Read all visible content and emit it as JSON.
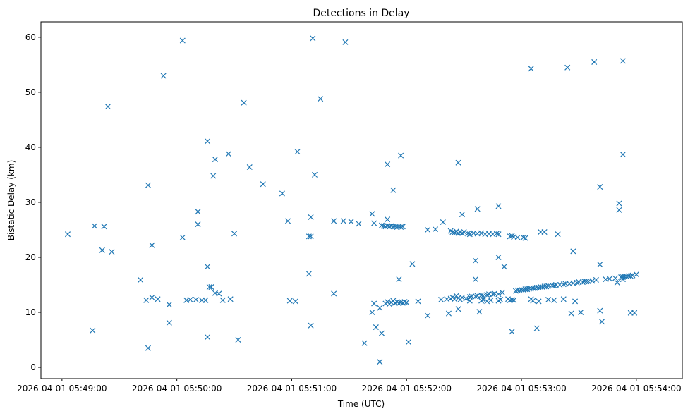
{
  "chart_data": {
    "type": "scatter",
    "title": "Detections in Delay",
    "xlabel": "Time (UTC)",
    "ylabel": "Bistatic Delay (km)",
    "x_units": "seconds after 2026-04-01 05:49:00",
    "xlim": [
      -11,
      324
    ],
    "ylim": [
      -2.05,
      62.8
    ],
    "x_ticks": [
      {
        "value": 0,
        "label": "2026-04-01 05:49:00"
      },
      {
        "value": 60,
        "label": "2026-04-01 05:50:00"
      },
      {
        "value": 120,
        "label": "2026-04-01 05:51:00"
      },
      {
        "value": 180,
        "label": "2026-04-01 05:52:00"
      },
      {
        "value": 240,
        "label": "2026-04-01 05:53:00"
      },
      {
        "value": 300,
        "label": "2026-04-01 05:54:00"
      }
    ],
    "y_ticks": [
      {
        "value": 0,
        "label": "0"
      },
      {
        "value": 10,
        "label": "10"
      },
      {
        "value": 20,
        "label": "20"
      },
      {
        "value": 30,
        "label": "30"
      },
      {
        "value": 40,
        "label": "40"
      },
      {
        "value": 50,
        "label": "50"
      },
      {
        "value": 60,
        "label": "60"
      }
    ],
    "grid": false,
    "marker": "x",
    "color": "#1f77b4",
    "series": [
      {
        "name": "detections",
        "points": [
          [
            3,
            24.2
          ],
          [
            16,
            6.7
          ],
          [
            17,
            25.7
          ],
          [
            21,
            21.3
          ],
          [
            22,
            25.6
          ],
          [
            24,
            47.4
          ],
          [
            26,
            21.0
          ],
          [
            41,
            15.9
          ],
          [
            44,
            12.2
          ],
          [
            45,
            33.1
          ],
          [
            45,
            3.5
          ],
          [
            47,
            12.7
          ],
          [
            47,
            22.2
          ],
          [
            50,
            12.4
          ],
          [
            53,
            53.0
          ],
          [
            56,
            11.4
          ],
          [
            56,
            8.1
          ],
          [
            63,
            59.4
          ],
          [
            63,
            23.6
          ],
          [
            65,
            12.2
          ],
          [
            67,
            12.3
          ],
          [
            70,
            12.3
          ],
          [
            71,
            28.3
          ],
          [
            71,
            26.0
          ],
          [
            73,
            12.2
          ],
          [
            75,
            12.2
          ],
          [
            76,
            18.3
          ],
          [
            76,
            5.5
          ],
          [
            76,
            41.1
          ],
          [
            77,
            14.6
          ],
          [
            78,
            14.6
          ],
          [
            79,
            34.8
          ],
          [
            80,
            13.5
          ],
          [
            80,
            37.8
          ],
          [
            82,
            13.4
          ],
          [
            84,
            12.2
          ],
          [
            87,
            38.8
          ],
          [
            88,
            12.4
          ],
          [
            90,
            24.3
          ],
          [
            92,
            5.0
          ],
          [
            95,
            48.1
          ],
          [
            98,
            36.4
          ],
          [
            105,
            33.3
          ],
          [
            115,
            31.6
          ],
          [
            118,
            26.6
          ],
          [
            119,
            12.1
          ],
          [
            122,
            12.0
          ],
          [
            123,
            39.2
          ],
          [
            129,
            17.0
          ],
          [
            129,
            23.8
          ],
          [
            130,
            27.3
          ],
          [
            130,
            23.8
          ],
          [
            130,
            7.6
          ],
          [
            131,
            59.8
          ],
          [
            132,
            35.0
          ],
          [
            135,
            48.8
          ],
          [
            142,
            13.4
          ],
          [
            142,
            26.6
          ],
          [
            147,
            26.6
          ],
          [
            148,
            59.1
          ],
          [
            151,
            26.5
          ],
          [
            155,
            26.1
          ],
          [
            158,
            4.4
          ],
          [
            162,
            27.9
          ],
          [
            162,
            10.0
          ],
          [
            163,
            26.2
          ],
          [
            163,
            11.6
          ],
          [
            164,
            7.3
          ],
          [
            166,
            1.0
          ],
          [
            166,
            10.8
          ],
          [
            167,
            6.2
          ],
          [
            170,
            36.9
          ],
          [
            170,
            26.9
          ],
          [
            173,
            32.2
          ],
          [
            176,
            16.0
          ],
          [
            177,
            38.5
          ],
          [
            181,
            4.6
          ],
          [
            183,
            18.8
          ],
          [
            186,
            12.0
          ],
          [
            191,
            25.0
          ],
          [
            191,
            9.4
          ],
          [
            195,
            25.1
          ],
          [
            199,
            26.4
          ],
          [
            202,
            9.8
          ],
          [
            207,
            37.2
          ],
          [
            207,
            10.6
          ],
          [
            209,
            27.8
          ],
          [
            216,
            16.0
          ],
          [
            217,
            28.8
          ],
          [
            216,
            19.4
          ],
          [
            218,
            10.1
          ],
          [
            228,
            29.3
          ],
          [
            228,
            20.0
          ],
          [
            231,
            18.3
          ],
          [
            235,
            6.5
          ],
          [
            245,
            54.3
          ],
          [
            248,
            7.1
          ],
          [
            250,
            24.6
          ],
          [
            252,
            24.6
          ],
          [
            254,
            12.3
          ],
          [
            259,
            24.2
          ],
          [
            264,
            54.5
          ],
          [
            266,
            9.8
          ],
          [
            267,
            21.1
          ],
          [
            268,
            12.0
          ],
          [
            271,
            10.0
          ],
          [
            278,
            55.5
          ],
          [
            281,
            32.8
          ],
          [
            281,
            18.7
          ],
          [
            281,
            10.3
          ],
          [
            282,
            8.3
          ],
          [
            291,
            29.8
          ],
          [
            291,
            28.6
          ],
          [
            293,
            38.7
          ],
          [
            293,
            55.7
          ],
          [
            293,
            16.0
          ],
          [
            297,
            9.9
          ],
          [
            299,
            9.9
          ],
          [
            167,
            25.8
          ],
          [
            168,
            25.7
          ],
          [
            169,
            25.6
          ],
          [
            170,
            25.7
          ],
          [
            171,
            25.6
          ],
          [
            172,
            25.7
          ],
          [
            173,
            25.6
          ],
          [
            174,
            25.6
          ],
          [
            175,
            25.5
          ],
          [
            176,
            25.6
          ],
          [
            177,
            25.5
          ],
          [
            178,
            25.6
          ],
          [
            203,
            24.8
          ],
          [
            204,
            24.6
          ],
          [
            205,
            24.5
          ],
          [
            206,
            24.7
          ],
          [
            207,
            24.4
          ],
          [
            208,
            24.5
          ],
          [
            209,
            24.4
          ],
          [
            210,
            24.6
          ],
          [
            212,
            24.3
          ],
          [
            213,
            24.2
          ],
          [
            215,
            24.4
          ],
          [
            217,
            24.3
          ],
          [
            219,
            24.4
          ],
          [
            221,
            24.2
          ],
          [
            223,
            24.3
          ],
          [
            225,
            24.2
          ],
          [
            227,
            24.3
          ],
          [
            228,
            24.2
          ],
          [
            234,
            23.8
          ],
          [
            235,
            23.9
          ],
          [
            236,
            23.7
          ],
          [
            238,
            23.6
          ],
          [
            241,
            23.6
          ],
          [
            242,
            23.5
          ],
          [
            169,
            11.6
          ],
          [
            170,
            11.9
          ],
          [
            171,
            11.5
          ],
          [
            172,
            11.8
          ],
          [
            173,
            12.1
          ],
          [
            174,
            11.7
          ],
          [
            175,
            11.9
          ],
          [
            176,
            11.6
          ],
          [
            177,
            11.8
          ],
          [
            178,
            11.7
          ],
          [
            179,
            11.9
          ],
          [
            180,
            11.8
          ],
          [
            198,
            12.3
          ],
          [
            201,
            12.4
          ],
          [
            203,
            12.5
          ],
          [
            204,
            12.7
          ],
          [
            205,
            12.4
          ],
          [
            206,
            13.0
          ],
          [
            207,
            12.6
          ],
          [
            209,
            12.7
          ],
          [
            211,
            12.5
          ],
          [
            213,
            12.8
          ],
          [
            214,
            12.9
          ],
          [
            216,
            12.9
          ],
          [
            217,
            13.0
          ],
          [
            219,
            13.1
          ],
          [
            220,
            13.0
          ],
          [
            222,
            13.2
          ],
          [
            223,
            13.3
          ],
          [
            225,
            13.3
          ],
          [
            226,
            13.4
          ],
          [
            228,
            13.3
          ],
          [
            230,
            13.6
          ],
          [
            237,
            13.9
          ],
          [
            238,
            14.0
          ],
          [
            239,
            14.0
          ],
          [
            240,
            14.1
          ],
          [
            241,
            14.1
          ],
          [
            242,
            14.2
          ],
          [
            243,
            14.2
          ],
          [
            244,
            14.3
          ],
          [
            245,
            14.3
          ],
          [
            246,
            14.4
          ],
          [
            247,
            14.4
          ],
          [
            248,
            14.5
          ],
          [
            249,
            14.5
          ],
          [
            250,
            14.6
          ],
          [
            251,
            14.6
          ],
          [
            252,
            14.7
          ],
          [
            253,
            14.7
          ],
          [
            254,
            14.8
          ],
          [
            256,
            14.9
          ],
          [
            257,
            14.9
          ],
          [
            258,
            15.0
          ],
          [
            260,
            15.0
          ],
          [
            262,
            15.1
          ],
          [
            263,
            15.2
          ],
          [
            265,
            15.2
          ],
          [
            267,
            15.3
          ],
          [
            269,
            15.4
          ],
          [
            270,
            15.5
          ],
          [
            272,
            15.5
          ],
          [
            273,
            15.6
          ],
          [
            274,
            15.6
          ],
          [
            275,
            15.6
          ],
          [
            277,
            15.7
          ],
          [
            279,
            15.9
          ],
          [
            284,
            16.0
          ],
          [
            286,
            16.1
          ],
          [
            289,
            16.2
          ],
          [
            290,
            15.4
          ],
          [
            292,
            16.4
          ],
          [
            293,
            16.4
          ],
          [
            294,
            16.5
          ],
          [
            295,
            16.5
          ],
          [
            296,
            16.6
          ],
          [
            297,
            16.6
          ],
          [
            298,
            16.7
          ],
          [
            300,
            16.9
          ],
          [
            208,
            12.3
          ],
          [
            213,
            12.1
          ],
          [
            219,
            12.1
          ],
          [
            220,
            12.3
          ],
          [
            222,
            12.0
          ],
          [
            224,
            12.2
          ],
          [
            228,
            12.1
          ],
          [
            229,
            12.3
          ],
          [
            233,
            12.4
          ],
          [
            234,
            12.2
          ],
          [
            235,
            12.3
          ],
          [
            236,
            12.2
          ],
          [
            245,
            12.4
          ],
          [
            246,
            12.1
          ],
          [
            249,
            12.0
          ],
          [
            257,
            12.2
          ],
          [
            262,
            12.4
          ]
        ]
      }
    ]
  }
}
